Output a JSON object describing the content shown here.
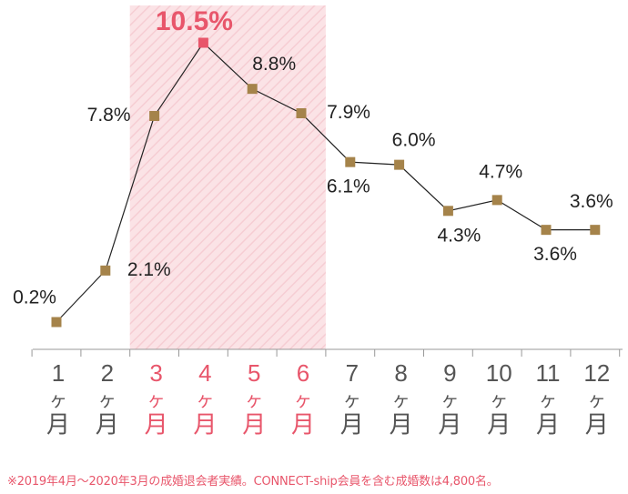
{
  "chart_data": {
    "type": "line",
    "categories": [
      {
        "num": "1",
        "ka": "ヶ",
        "tsuki": "月"
      },
      {
        "num": "2",
        "ka": "ヶ",
        "tsuki": "月"
      },
      {
        "num": "3",
        "ka": "ヶ",
        "tsuki": "月"
      },
      {
        "num": "4",
        "ka": "ヶ",
        "tsuki": "月"
      },
      {
        "num": "5",
        "ka": "ヶ",
        "tsuki": "月"
      },
      {
        "num": "6",
        "ka": "ヶ",
        "tsuki": "月"
      },
      {
        "num": "7",
        "ka": "ヶ",
        "tsuki": "月"
      },
      {
        "num": "8",
        "ka": "ヶ",
        "tsuki": "月"
      },
      {
        "num": "9",
        "ka": "ヶ",
        "tsuki": "月"
      },
      {
        "num": "10",
        "ka": "ヶ",
        "tsuki": "月"
      },
      {
        "num": "11",
        "ka": "ヶ",
        "tsuki": "月"
      },
      {
        "num": "12",
        "ka": "ヶ",
        "tsuki": "月"
      }
    ],
    "values": [
      0.2,
      2.1,
      7.8,
      10.5,
      8.8,
      7.9,
      6.1,
      6.0,
      4.3,
      4.7,
      3.6,
      3.6
    ],
    "data_labels": [
      "0.2%",
      "2.1%",
      "7.8%",
      "10.5%",
      "8.8%",
      "7.9%",
      "6.1%",
      "6.0%",
      "4.3%",
      "4.7%",
      "3.6%",
      "3.6%"
    ],
    "highlight_range": [
      3,
      6
    ],
    "peak_index": 3,
    "ylim": [
      0,
      10.5
    ],
    "grid": false,
    "title": "",
    "xlabel": "",
    "ylabel": "",
    "colors": {
      "marker": "#a5834a",
      "peak_marker": "#e8566b",
      "line": "#222222",
      "highlight_fill": "#fbe4e6",
      "highlight_text": "#e8566b",
      "axis_text": "#555555",
      "value_text": "#222222",
      "axis_line": "#999999"
    }
  },
  "footnote": "※2019年4月～2020年3月の成婚退会者実績。CONNECT-ship会員を含む成婚数は4,800名。"
}
